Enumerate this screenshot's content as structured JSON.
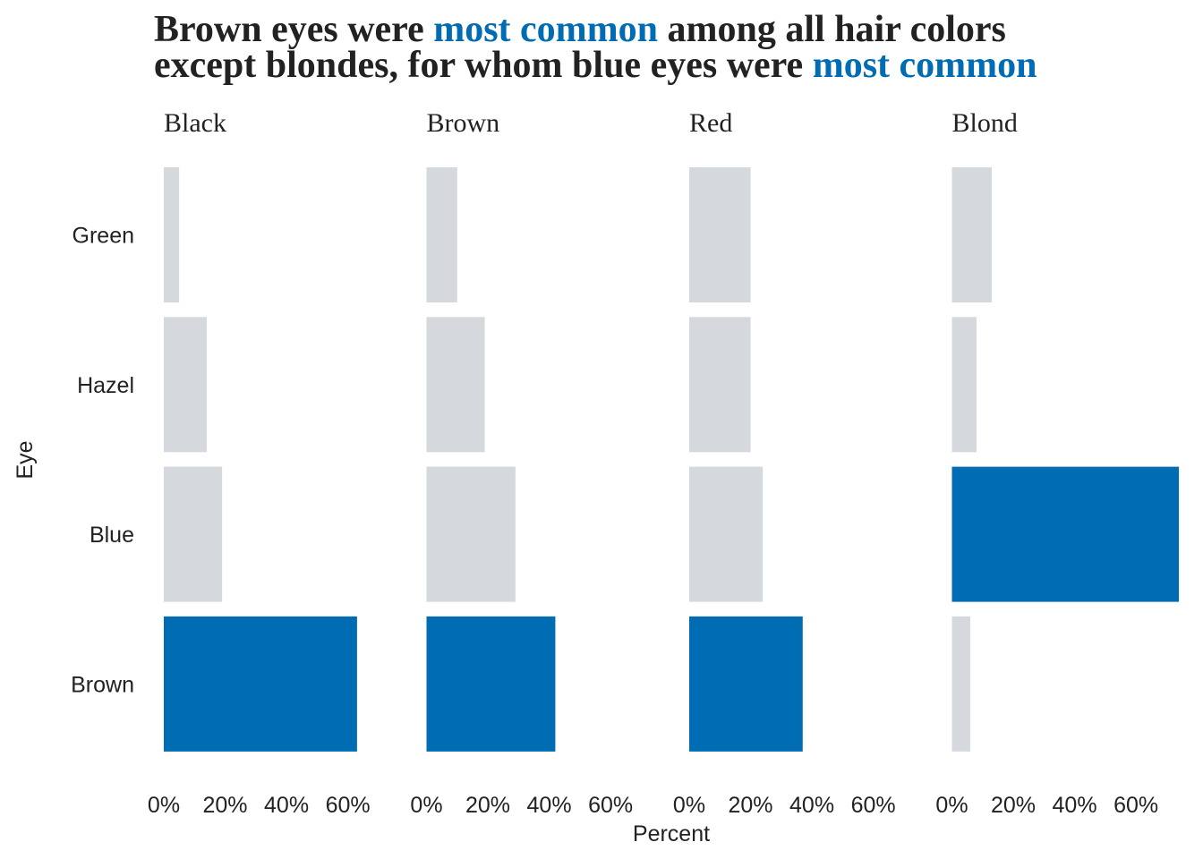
{
  "chart_data": {
    "type": "bar",
    "orientation": "horizontal",
    "title_lines": [
      [
        {
          "text": "Brown eyes were ",
          "color": "#222222"
        },
        {
          "text": "most common",
          "color": "#006cb3"
        },
        {
          "text": " among all hair colors",
          "color": "#222222"
        }
      ],
      [
        {
          "text": "except blondes, for whom blue eyes were ",
          "color": "#222222"
        },
        {
          "text": "most common",
          "color": "#006cb3"
        }
      ]
    ],
    "x_label": "Percent",
    "y_label": "Eye",
    "categories": [
      "Green",
      "Hazel",
      "Blue",
      "Brown"
    ],
    "facets": [
      {
        "name": "Black",
        "values": [
          5,
          14,
          19,
          63
        ],
        "colors": [
          "#d5d8dc",
          "#d5d8dc",
          "#d5d8dc",
          "#006cb3"
        ]
      },
      {
        "name": "Brown",
        "values": [
          10,
          19,
          29,
          42
        ],
        "colors": [
          "#d5d8dc",
          "#d5d8dc",
          "#d5d8dc",
          "#006cb3"
        ]
      },
      {
        "name": "Red",
        "values": [
          20,
          20,
          24,
          37
        ],
        "colors": [
          "#d5d8dc",
          "#d5d8dc",
          "#d5d8dc",
          "#006cb3"
        ]
      },
      {
        "name": "Blond",
        "values": [
          13,
          8,
          74,
          6
        ],
        "colors": [
          "#d5d8dc",
          "#d5d8dc",
          "#006cb3",
          "#d5d8dc"
        ]
      }
    ],
    "xlim": [
      0,
      75
    ],
    "xticks": [
      {
        "value": 0,
        "label": "0%"
      },
      {
        "value": 20,
        "label": "20%"
      },
      {
        "value": 40,
        "label": "40%"
      },
      {
        "value": 60,
        "label": "60%"
      }
    ],
    "grid": false
  }
}
